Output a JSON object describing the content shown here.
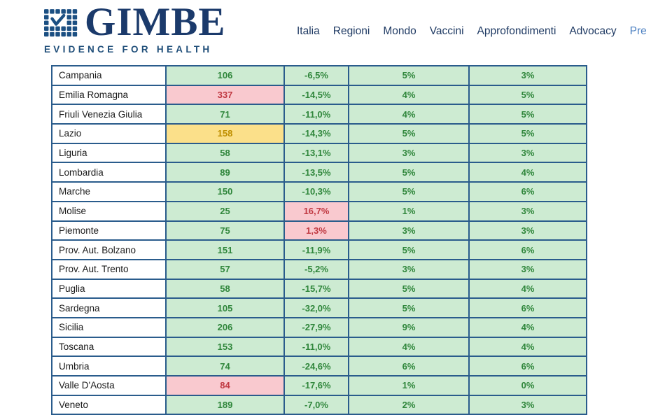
{
  "brand": {
    "name": "GIMBE",
    "tagline": "EVIDENCE FOR HEALTH"
  },
  "nav": {
    "items": [
      {
        "label": "Italia",
        "muted": false
      },
      {
        "label": "Regioni",
        "muted": false
      },
      {
        "label": "Mondo",
        "muted": false
      },
      {
        "label": "Vaccini",
        "muted": false
      },
      {
        "label": "Approfondimenti",
        "muted": false
      },
      {
        "label": "Advocacy",
        "muted": false
      },
      {
        "label": "Pre",
        "muted": true
      }
    ]
  },
  "colors": {
    "brand_navy": "#1b3a6b",
    "nav_link": "#1f3a63",
    "nav_link_muted": "#4a7fc1",
    "table_border": "#2a5c8c",
    "cell_green_bg": "#cdebd2",
    "cell_pink_bg": "#f9c9cf",
    "cell_yellow_bg": "#fbe08a",
    "text_green": "#2f863b",
    "text_red": "#c03942",
    "text_gold": "#bf8f00"
  },
  "table": {
    "rows": [
      {
        "region": "Campania",
        "value": "106",
        "value_bg": "green",
        "change": "-6,5%",
        "change_bg": "green",
        "pct_a": "5%",
        "pct_b": "3%"
      },
      {
        "region": "Emilia Romagna",
        "value": "337",
        "value_bg": "pink",
        "change": "-14,5%",
        "change_bg": "green",
        "pct_a": "4%",
        "pct_b": "5%"
      },
      {
        "region": "Friuli Venezia Giulia",
        "value": "71",
        "value_bg": "green",
        "change": "-11,0%",
        "change_bg": "green",
        "pct_a": "4%",
        "pct_b": "5%"
      },
      {
        "region": "Lazio",
        "value": "158",
        "value_bg": "yellow",
        "change": "-14,3%",
        "change_bg": "green",
        "pct_a": "5%",
        "pct_b": "5%"
      },
      {
        "region": "Liguria",
        "value": "58",
        "value_bg": "green",
        "change": "-13,1%",
        "change_bg": "green",
        "pct_a": "3%",
        "pct_b": "3%"
      },
      {
        "region": "Lombardia",
        "value": "89",
        "value_bg": "green",
        "change": "-13,5%",
        "change_bg": "green",
        "pct_a": "5%",
        "pct_b": "4%"
      },
      {
        "region": "Marche",
        "value": "150",
        "value_bg": "green",
        "change": "-10,3%",
        "change_bg": "green",
        "pct_a": "5%",
        "pct_b": "6%"
      },
      {
        "region": "Molise",
        "value": "25",
        "value_bg": "green",
        "change": "16,7%",
        "change_bg": "pink",
        "pct_a": "1%",
        "pct_b": "3%"
      },
      {
        "region": "Piemonte",
        "value": "75",
        "value_bg": "green",
        "change": "1,3%",
        "change_bg": "pink",
        "pct_a": "3%",
        "pct_b": "3%"
      },
      {
        "region": "Prov. Aut. Bolzano",
        "value": "151",
        "value_bg": "green",
        "change": "-11,9%",
        "change_bg": "green",
        "pct_a": "5%",
        "pct_b": "6%"
      },
      {
        "region": "Prov. Aut. Trento",
        "value": "57",
        "value_bg": "green",
        "change": "-5,2%",
        "change_bg": "green",
        "pct_a": "3%",
        "pct_b": "3%"
      },
      {
        "region": "Puglia",
        "value": "58",
        "value_bg": "green",
        "change": "-15,7%",
        "change_bg": "green",
        "pct_a": "5%",
        "pct_b": "4%"
      },
      {
        "region": "Sardegna",
        "value": "105",
        "value_bg": "green",
        "change": "-32,0%",
        "change_bg": "green",
        "pct_a": "5%",
        "pct_b": "6%"
      },
      {
        "region": "Sicilia",
        "value": "206",
        "value_bg": "green",
        "change": "-27,9%",
        "change_bg": "green",
        "pct_a": "9%",
        "pct_b": "4%"
      },
      {
        "region": "Toscana",
        "value": "153",
        "value_bg": "green",
        "change": "-11,0%",
        "change_bg": "green",
        "pct_a": "4%",
        "pct_b": "4%"
      },
      {
        "region": "Umbria",
        "value": "74",
        "value_bg": "green",
        "change": "-24,6%",
        "change_bg": "green",
        "pct_a": "6%",
        "pct_b": "6%"
      },
      {
        "region": "Valle D'Aosta",
        "value": "84",
        "value_bg": "pink",
        "change": "-17,6%",
        "change_bg": "green",
        "pct_a": "1%",
        "pct_b": "0%"
      },
      {
        "region": "Veneto",
        "value": "189",
        "value_bg": "green",
        "change": "-7,0%",
        "change_bg": "green",
        "pct_a": "2%",
        "pct_b": "3%"
      }
    ]
  }
}
